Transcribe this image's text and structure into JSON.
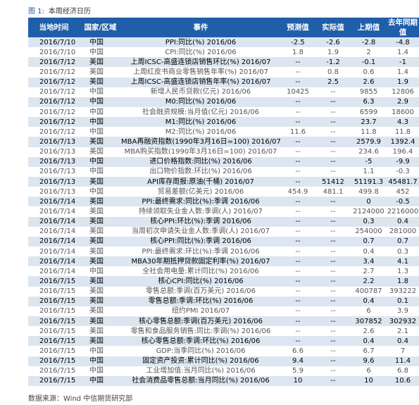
{
  "caption": {
    "label": "图 1:",
    "text": "本周经济日历"
  },
  "headers": [
    "当地时间",
    "国家/区域",
    "事件",
    "预测值",
    "实际值",
    "上期值",
    "去年同期值"
  ],
  "rows": [
    {
      "h": true,
      "c": [
        "2016/7/10",
        "中国",
        "PPI:同比(%) 2016/06",
        "-2.5",
        "-2.6",
        "-2.8",
        "-4.8"
      ]
    },
    {
      "h": false,
      "c": [
        "2016/7/10",
        "中国",
        "CPI:同比(%) 2016/06",
        "1.8",
        "1.9",
        "2",
        "1.4"
      ]
    },
    {
      "h": true,
      "c": [
        "2016/7/12",
        "美国",
        "上周ICSC-高盛连锁店销售环比(%) 2016/07",
        "--",
        "-1.2",
        "-0.1",
        "-1"
      ]
    },
    {
      "h": false,
      "c": [
        "2016/7/12",
        "美国",
        "上周红皮书商业零售销售年率(%) 2016/07",
        "--",
        "0.8",
        "0.6",
        "1.4"
      ]
    },
    {
      "h": true,
      "c": [
        "2016/7/12",
        "美国",
        "上周ICSC-高盛连锁店销售年率(%) 2016/07",
        "--",
        "2.5",
        "2.6",
        "1.9"
      ]
    },
    {
      "h": false,
      "c": [
        "2016/7/12",
        "中国",
        "新增人民币贷款(亿元) 2016/06",
        "10425",
        "--",
        "9855",
        "12806"
      ]
    },
    {
      "h": true,
      "c": [
        "2016/7/12",
        "中国",
        "M0:同比(%) 2016/06",
        "--",
        "--",
        "6.3",
        "2.9"
      ]
    },
    {
      "h": false,
      "c": [
        "2016/7/12",
        "中国",
        "社会融资规模:当月值(亿元) 2016/06",
        "--",
        "--",
        "6599",
        "18600"
      ]
    },
    {
      "h": true,
      "c": [
        "2016/7/12",
        "中国",
        "M1:同比(%) 2016/06",
        "--",
        "--",
        "23.7",
        "4.3"
      ]
    },
    {
      "h": false,
      "c": [
        "2016/7/12",
        "中国",
        "M2:同比(%) 2016/06",
        "11.6",
        "--",
        "11.8",
        "11.8"
      ]
    },
    {
      "h": true,
      "c": [
        "2016/7/13",
        "美国",
        "MBA再融资指数(1990年3月16日=100) 2016/07",
        "--",
        "--",
        "2579.9",
        "1392.4"
      ]
    },
    {
      "h": false,
      "c": [
        "2016/7/13",
        "美国",
        "MBA购买指数(1990年3月16日=100) 2016/07",
        "--",
        "--",
        "234.6",
        "196.4"
      ]
    },
    {
      "h": true,
      "c": [
        "2016/7/13",
        "中国",
        "进口价格指数:同比(%) 2016/06",
        "--",
        "--",
        "-5",
        "-9.9"
      ]
    },
    {
      "h": false,
      "c": [
        "2016/7/13",
        "中国",
        "出口物价指数:环比(%) 2016/06",
        "--",
        "--",
        "1.1",
        "-0.3"
      ]
    },
    {
      "h": true,
      "c": [
        "2016/7/13",
        "美国",
        "API库存周报:原油(千桶) 2016/07",
        "--",
        "51412",
        "51191.3",
        "45481.7"
      ]
    },
    {
      "h": false,
      "c": [
        "2016/7/13",
        "中国",
        "贸易差额(亿美元) 2016/06",
        "454.9",
        "481.1",
        "499.8",
        "452"
      ]
    },
    {
      "h": true,
      "c": [
        "2016/7/14",
        "美国",
        "PPI:最终需求:同比(%):季调 2016/06",
        "--",
        "--",
        "0",
        "-0.5"
      ]
    },
    {
      "h": false,
      "c": [
        "2016/7/14",
        "美国",
        "持续领取失业金人数:季调(人) 2016/07",
        "--",
        "--",
        "2124000",
        "2216000"
      ]
    },
    {
      "h": true,
      "c": [
        "2016/7/14",
        "美国",
        "核心PPI:环比(%):季调 2016/06",
        "--",
        "--",
        "0.3",
        "0.4"
      ]
    },
    {
      "h": false,
      "c": [
        "2016/7/14",
        "美国",
        "当周初次申请失业金人数:季调(人) 2016/07",
        "--",
        "--",
        "254000",
        "281000"
      ]
    },
    {
      "h": true,
      "c": [
        "2016/7/14",
        "美国",
        "核心PPI:同比(%):季调 2016/06",
        "--",
        "--",
        "0.7",
        "0.7"
      ]
    },
    {
      "h": false,
      "c": [
        "2016/7/14",
        "美国",
        "PPI:最终需求:环比(%):季调 2016/06",
        "--",
        "--",
        "0.4",
        "0.3"
      ]
    },
    {
      "h": true,
      "c": [
        "2016/7/14",
        "美国",
        "MBA30年期抵押贷款固定利率(%) 2016/07",
        "--",
        "--",
        "3.4",
        "4.1"
      ]
    },
    {
      "h": false,
      "c": [
        "2016/7/14",
        "中国",
        "全社会用电量:累计同比(%) 2016/06",
        "--",
        "--",
        "2.7",
        "1.3"
      ]
    },
    {
      "h": true,
      "c": [
        "2016/7/15",
        "美国",
        "核心CPI:同比(%) 2016/06",
        "--",
        "--",
        "2.2",
        "1.8"
      ]
    },
    {
      "h": false,
      "c": [
        "2016/7/15",
        "美国",
        "零售总额:季调(百万美元) 2016/06",
        "--",
        "--",
        "400787",
        "393222"
      ]
    },
    {
      "h": true,
      "c": [
        "2016/7/15",
        "美国",
        "零售总额:季调:环比(%) 2016/06",
        "--",
        "--",
        "0.4",
        "0.1"
      ]
    },
    {
      "h": false,
      "c": [
        "2016/7/15",
        "美国",
        "纽约PMI 2016/07",
        "--",
        "--",
        "6",
        "3.9"
      ]
    },
    {
      "h": true,
      "c": [
        "2016/7/15",
        "美国",
        "核心零售总额:季调(百万美元) 2016/06",
        "--",
        "--",
        "307852",
        "302932"
      ]
    },
    {
      "h": false,
      "c": [
        "2016/7/15",
        "美国",
        "零售和食品服务销售:同比:季调(%) 2016/06",
        "--",
        "--",
        "2.6",
        "2.1"
      ]
    },
    {
      "h": true,
      "c": [
        "2016/7/15",
        "美国",
        "核心零售总额:季调:环比(%) 2016/06",
        "--",
        "--",
        "0.4",
        "0.4"
      ]
    },
    {
      "h": false,
      "c": [
        "2016/7/15",
        "中国",
        "GDP:当季同比(%) 2016/06",
        "6.6",
        "--",
        "6.7",
        "7"
      ]
    },
    {
      "h": true,
      "c": [
        "2016/7/15",
        "中国",
        "固定资产投资:累计同比(%) 2016/06",
        "9.4",
        "--",
        "9.6",
        "11.4"
      ]
    },
    {
      "h": false,
      "c": [
        "2016/7/15",
        "中国",
        "工业增加值:当月同比(%) 2016/06",
        "5.9",
        "--",
        "6",
        "6.8"
      ]
    },
    {
      "h": true,
      "c": [
        "2016/7/15",
        "中国",
        "社会消费品零售总额:当月同比(%) 2016/06",
        "10",
        "--",
        "10",
        "10.6"
      ]
    }
  ],
  "source": "数据来源：Wind    中信期货研究部"
}
